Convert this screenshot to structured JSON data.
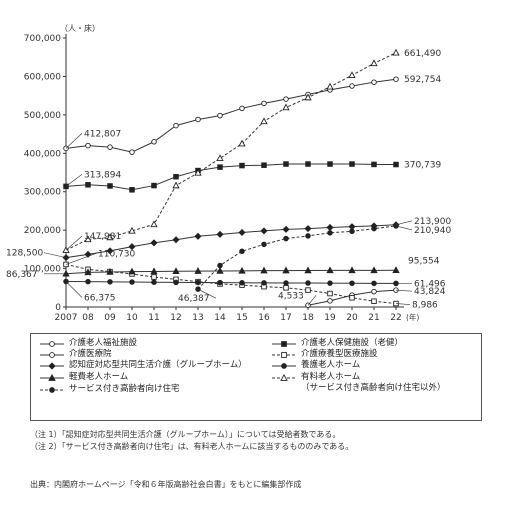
{
  "chart_data": {
    "type": "line",
    "unit_label": "（人・床）",
    "x": [
      "2007",
      "08",
      "09",
      "10",
      "11",
      "12",
      "13",
      "14",
      "15",
      "16",
      "17",
      "18",
      "19",
      "20",
      "21",
      "22"
    ],
    "x_unit": "(年)",
    "ylim": [
      0,
      700000
    ],
    "yticks": [
      "0",
      "100,000",
      "200,000",
      "300,000",
      "400,000",
      "500,000",
      "600,000",
      "700,000"
    ],
    "series": [
      {
        "name": "介護老人福祉施設",
        "marker": "circle-open",
        "dash": "solid",
        "values": [
          412807,
          420000,
          416000,
          403000,
          430000,
          472000,
          488000,
          498000,
          517000,
          530000,
          541000,
          553000,
          565000,
          575000,
          585000,
          592754
        ]
      },
      {
        "name": "介護老人保健施設（老健）",
        "marker": "square-filled",
        "dash": "solid",
        "values": [
          313894,
          318000,
          315000,
          305000,
          316000,
          339000,
          355000,
          364000,
          368000,
          369000,
          372000,
          372000,
          372000,
          372000,
          371000,
          370739
        ]
      },
      {
        "name": "介護医療院",
        "marker": "circle-open",
        "dash": "solid",
        "values": [
          null,
          null,
          null,
          null,
          null,
          null,
          null,
          null,
          null,
          null,
          null,
          4533,
          16000,
          31000,
          40000,
          43824
        ]
      },
      {
        "name": "介護療養型医療施設",
        "marker": "square-open",
        "dash": "dashed",
        "values": [
          110730,
          98000,
          92000,
          86000,
          78000,
          72000,
          66000,
          60000,
          57000,
          53000,
          50000,
          44000,
          35000,
          24000,
          15000,
          8986
        ]
      },
      {
        "name": "認知症対応型共同生活介護（グループホーム）",
        "marker": "diamond-filled",
        "dash": "solid",
        "values": [
          128500,
          137000,
          146000,
          157000,
          167000,
          175000,
          184000,
          189000,
          194000,
          198000,
          202000,
          204000,
          207000,
          209000,
          211000,
          213900
        ]
      },
      {
        "name": "養護老人ホーム",
        "marker": "circle-filled",
        "dash": "solid",
        "values": [
          66375,
          66000,
          65500,
          65000,
          64500,
          64000,
          63800,
          63500,
          63000,
          62800,
          62500,
          62300,
          62000,
          61800,
          61600,
          61496
        ]
      },
      {
        "name": "軽費老人ホーム",
        "marker": "triangle-filled",
        "dash": "solid",
        "values": [
          86367,
          90000,
          91000,
          92000,
          92500,
          93000,
          93500,
          93800,
          94000,
          94500,
          94800,
          95000,
          95200,
          95300,
          95400,
          95554
        ]
      },
      {
        "name": "有料老人ホーム（サービス付き高齢者向け住宅以外）",
        "marker": "triangle-open",
        "dash": "dashed",
        "values": [
          147981,
          176000,
          181000,
          198000,
          215000,
          316000,
          349000,
          387000,
          425000,
          483000,
          519000,
          545000,
          573000,
          603000,
          634000,
          661490
        ]
      },
      {
        "name": "サービス付き高齢者向け住宅",
        "marker": "circle-filled",
        "dash": "dashed",
        "values": [
          null,
          null,
          null,
          null,
          null,
          null,
          46387,
          108000,
          145000,
          163000,
          178000,
          185000,
          193000,
          197000,
          204000,
          210940
        ]
      }
    ],
    "data_labels": [
      {
        "text": "412,807",
        "x": "2007",
        "y": 412807
      },
      {
        "text": "313,894",
        "x": "2007",
        "y": 313894
      },
      {
        "text": "147,981",
        "x": "2007",
        "y": 147981
      },
      {
        "text": "128,500",
        "x": "2007",
        "y": 128500
      },
      {
        "text": "110,730",
        "x": "2007",
        "y": 110730
      },
      {
        "text": "86,367",
        "x": "2007",
        "y": 86367
      },
      {
        "text": "66,375",
        "x": "2007",
        "y": 66375
      },
      {
        "text": "46,387",
        "x": "13",
        "y": 46387
      },
      {
        "text": "4,533",
        "x": "18",
        "y": 4533
      },
      {
        "text": "661,490",
        "x": "22",
        "y": 661490
      },
      {
        "text": "592,754",
        "x": "22",
        "y": 592754
      },
      {
        "text": "370,739",
        "x": "22",
        "y": 370739
      },
      {
        "text": "213,900",
        "x": "22",
        "y": 213900
      },
      {
        "text": "210,940",
        "x": "22",
        "y": 210940
      },
      {
        "text": "95,554",
        "x": "22",
        "y": 95554
      },
      {
        "text": "61,496",
        "x": "22",
        "y": 61496
      },
      {
        "text": "43,824",
        "x": "22",
        "y": 43824
      },
      {
        "text": "8,986",
        "x": "22",
        "y": 8986
      }
    ],
    "grid": false
  },
  "legend": [
    {
      "label": "介護老人福祉施設",
      "marker": "circle-open",
      "dash": "solid"
    },
    {
      "label": "介護老人保健施設（老健）",
      "marker": "square-filled",
      "dash": "solid"
    },
    {
      "label": "介護医療院",
      "marker": "circle-open",
      "dash": "solid"
    },
    {
      "label": "介護療養型医療施設",
      "marker": "square-open",
      "dash": "dashed"
    },
    {
      "label": "認知症対応型共同生活介護（グループホーム）",
      "marker": "diamond-filled",
      "dash": "solid"
    },
    {
      "label": "養護老人ホーム",
      "marker": "circle-filled",
      "dash": "solid"
    },
    {
      "label": "軽費老人ホーム",
      "marker": "triangle-filled",
      "dash": "solid"
    },
    {
      "label": "有料老人ホーム",
      "label2": "（サービス付き高齢者向け住宅以外）",
      "marker": "triangle-open",
      "dash": "dashed"
    },
    {
      "label": "サービス付き高齢者向け住宅",
      "marker": "circle-filled",
      "dash": "dashed"
    }
  ],
  "notes": [
    "（注 1）「認知症対応型共同生活介護（グループホーム）」については受給者数である。",
    "（注 2）「サービス付き高齢者向け住宅」は、有料老人ホームに該当するもののみである。"
  ],
  "source": "出典：内閣府ホームページ「令和６年版高齢社会白書」をもとに編集部作成"
}
